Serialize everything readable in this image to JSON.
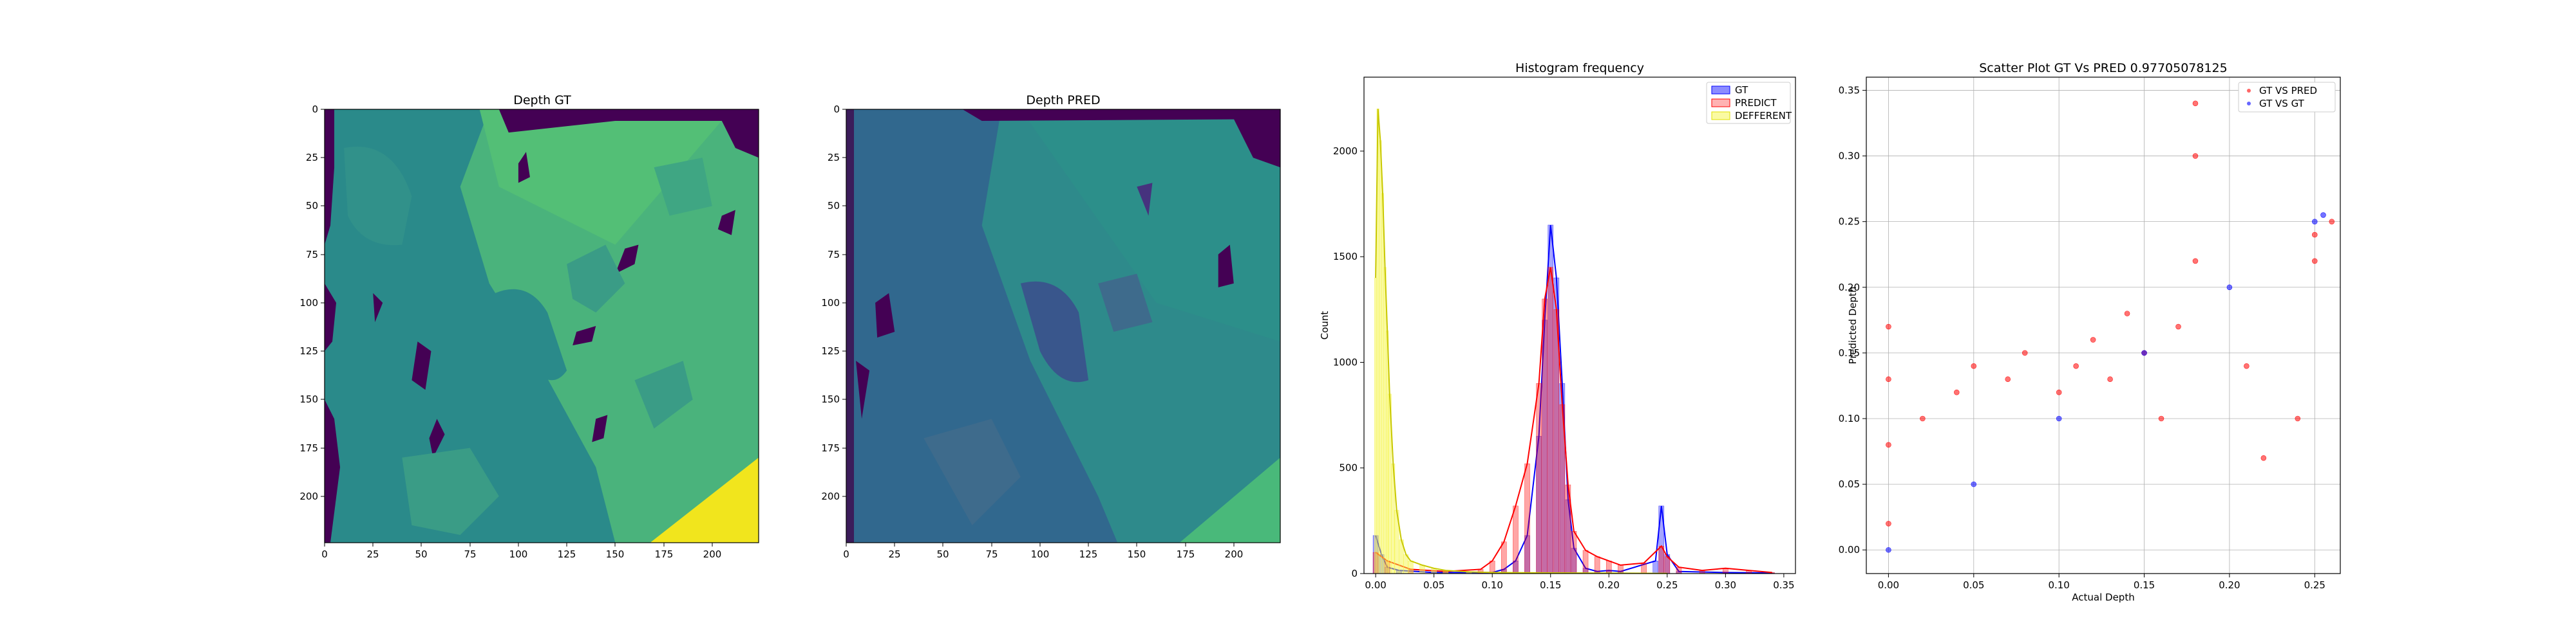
{
  "figure": {
    "panels": [
      "depth_gt",
      "depth_pred",
      "histogram",
      "scatter"
    ]
  },
  "chart_data": [
    {
      "id": "depth_gt",
      "type": "heatmap",
      "title": "Depth GT",
      "xlabel": "",
      "ylabel": "",
      "xlim": [
        0,
        224
      ],
      "ylim": [
        224,
        0
      ],
      "xticks": [
        "0",
        "25",
        "50",
        "75",
        "100",
        "125",
        "150",
        "175",
        "200"
      ],
      "yticks": [
        "0",
        "25",
        "50",
        "75",
        "100",
        "125",
        "150",
        "175",
        "200"
      ],
      "colormap": "viridis",
      "colors": {
        "background": "#4ab37c",
        "left_region": "#2a8a8a",
        "low": "#440154",
        "high": "#f1e51d",
        "mid": "#3b9c86"
      }
    },
    {
      "id": "depth_pred",
      "type": "heatmap",
      "title": "Depth PRED",
      "xlabel": "",
      "ylabel": "",
      "xlim": [
        0,
        224
      ],
      "ylim": [
        224,
        0
      ],
      "xticks": [
        "0",
        "25",
        "50",
        "75",
        "100",
        "125",
        "150",
        "175",
        "200"
      ],
      "yticks": [
        "0",
        "25",
        "50",
        "75",
        "100",
        "125",
        "150",
        "175",
        "200"
      ],
      "colormap": "viridis",
      "colors": {
        "background": "#2e8a8b",
        "dark": "#3e5e8c",
        "low": "#440154",
        "high": "#f1e51d",
        "corner": "#49b97a"
      }
    },
    {
      "id": "histogram",
      "type": "bar",
      "title": "Histogram frequency",
      "xlabel": "",
      "ylabel": "Count",
      "xlim": [
        -0.01,
        0.36
      ],
      "ylim": [
        0,
        2350
      ],
      "xticks": [
        "0.00",
        "0.05",
        "0.10",
        "0.15",
        "0.20",
        "0.25",
        "0.30",
        "0.35"
      ],
      "xtick_values": [
        0,
        0.05,
        0.1,
        0.15,
        0.2,
        0.25,
        0.3,
        0.35
      ],
      "yticks": [
        "0",
        "500",
        "1000",
        "1500",
        "2000"
      ],
      "ytick_values": [
        0,
        500,
        1000,
        1500,
        2000
      ],
      "legend": {
        "position": "top-right",
        "entries": [
          "GT",
          "PREDICT",
          "DEFFERENT"
        ]
      },
      "series": [
        {
          "name": "GT",
          "color": "#0000ff",
          "points": [
            [
              0.0,
              180
            ],
            [
              0.005,
              90
            ],
            [
              0.01,
              30
            ],
            [
              0.02,
              15
            ],
            [
              0.05,
              5
            ],
            [
              0.1,
              5
            ],
            [
              0.11,
              20
            ],
            [
              0.12,
              60
            ],
            [
              0.13,
              180
            ],
            [
              0.14,
              650
            ],
            [
              0.145,
              1200
            ],
            [
              0.15,
              1650
            ],
            [
              0.155,
              1400
            ],
            [
              0.16,
              900
            ],
            [
              0.165,
              350
            ],
            [
              0.17,
              120
            ],
            [
              0.18,
              25
            ],
            [
              0.19,
              10
            ],
            [
              0.2,
              15
            ],
            [
              0.21,
              10
            ],
            [
              0.24,
              60
            ],
            [
              0.245,
              320
            ],
            [
              0.25,
              90
            ],
            [
              0.26,
              10
            ],
            [
              0.3,
              5
            ],
            [
              0.34,
              3
            ]
          ]
        },
        {
          "name": "PREDICT",
          "color": "#ff0000",
          "points": [
            [
              0.0,
              100
            ],
            [
              0.01,
              60
            ],
            [
              0.03,
              20
            ],
            [
              0.06,
              10
            ],
            [
              0.09,
              20
            ],
            [
              0.1,
              60
            ],
            [
              0.11,
              150
            ],
            [
              0.12,
              320
            ],
            [
              0.13,
              520
            ],
            [
              0.14,
              900
            ],
            [
              0.145,
              1300
            ],
            [
              0.15,
              1450
            ],
            [
              0.155,
              1250
            ],
            [
              0.16,
              800
            ],
            [
              0.165,
              420
            ],
            [
              0.17,
              200
            ],
            [
              0.18,
              110
            ],
            [
              0.19,
              80
            ],
            [
              0.2,
              60
            ],
            [
              0.21,
              40
            ],
            [
              0.23,
              50
            ],
            [
              0.245,
              130
            ],
            [
              0.25,
              80
            ],
            [
              0.26,
              30
            ],
            [
              0.28,
              15
            ],
            [
              0.3,
              25
            ],
            [
              0.32,
              15
            ],
            [
              0.34,
              5
            ]
          ]
        },
        {
          "name": "DEFFERENT",
          "color": "#f5f546",
          "points": [
            [
              0.0,
              1400
            ],
            [
              0.002,
              2200
            ],
            [
              0.004,
              2050
            ],
            [
              0.006,
              1800
            ],
            [
              0.008,
              1450
            ],
            [
              0.01,
              1150
            ],
            [
              0.012,
              850
            ],
            [
              0.015,
              520
            ],
            [
              0.018,
              300
            ],
            [
              0.022,
              160
            ],
            [
              0.026,
              90
            ],
            [
              0.03,
              60
            ],
            [
              0.04,
              40
            ],
            [
              0.05,
              25
            ],
            [
              0.06,
              15
            ],
            [
              0.08,
              8
            ],
            [
              0.1,
              5
            ],
            [
              0.15,
              3
            ],
            [
              0.2,
              2
            ],
            [
              0.25,
              1
            ]
          ]
        }
      ]
    },
    {
      "id": "scatter",
      "type": "scatter",
      "title": "Scatter Plot GT Vs PRED 0.97705078125",
      "xlabel": "Actual Depth",
      "ylabel": "Predicted Depth",
      "xlim": [
        -0.013,
        0.265
      ],
      "ylim": [
        -0.018,
        0.36
      ],
      "xticks": [
        "0.00",
        "0.05",
        "0.10",
        "0.15",
        "0.20",
        "0.25"
      ],
      "xtick_values": [
        0,
        0.05,
        0.1,
        0.15,
        0.2,
        0.25
      ],
      "yticks": [
        "0.00",
        "0.05",
        "0.10",
        "0.15",
        "0.20",
        "0.25",
        "0.30",
        "0.35"
      ],
      "ytick_values": [
        0,
        0.05,
        0.1,
        0.15,
        0.2,
        0.25,
        0.3,
        0.35
      ],
      "grid": true,
      "legend": {
        "position": "top-right",
        "entries": [
          "GT VS PRED",
          "GT VS GT"
        ]
      },
      "series": [
        {
          "name": "GT VS PRED",
          "color": "#ff0000",
          "points": [
            [
              0.0,
              0.02
            ],
            [
              0.0,
              0.08
            ],
            [
              0.0,
              0.13
            ],
            [
              0.0,
              0.17
            ],
            [
              0.02,
              0.1
            ],
            [
              0.04,
              0.12
            ],
            [
              0.05,
              0.14
            ],
            [
              0.07,
              0.13
            ],
            [
              0.08,
              0.15
            ],
            [
              0.1,
              0.12
            ],
            [
              0.11,
              0.14
            ],
            [
              0.12,
              0.16
            ],
            [
              0.13,
              0.13
            ],
            [
              0.14,
              0.18
            ],
            [
              0.15,
              0.15
            ],
            [
              0.16,
              0.1
            ],
            [
              0.17,
              0.17
            ],
            [
              0.18,
              0.3
            ],
            [
              0.18,
              0.34
            ],
            [
              0.18,
              0.22
            ],
            [
              0.21,
              0.14
            ],
            [
              0.22,
              0.07
            ],
            [
              0.24,
              0.1
            ],
            [
              0.25,
              0.24
            ],
            [
              0.25,
              0.22
            ],
            [
              0.26,
              0.25
            ]
          ]
        },
        {
          "name": "GT VS GT",
          "color": "#0000ff",
          "points": [
            [
              0.0,
              0.0
            ],
            [
              0.05,
              0.05
            ],
            [
              0.1,
              0.1
            ],
            [
              0.15,
              0.15
            ],
            [
              0.2,
              0.2
            ],
            [
              0.25,
              0.25
            ],
            [
              0.255,
              0.255
            ]
          ]
        }
      ]
    }
  ]
}
